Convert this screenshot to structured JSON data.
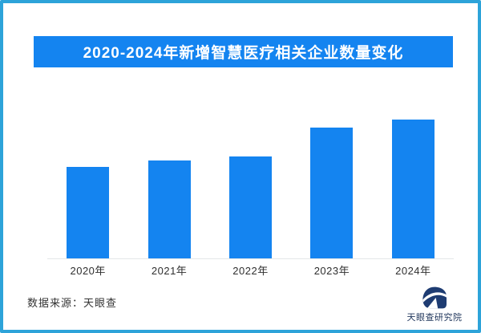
{
  "frame": {
    "background": "#ffffff",
    "border_color": "#2da3d9"
  },
  "title_banner": {
    "text": "2020-2024年新增智慧医疗相关企业数量变化",
    "bg_color": "#1484f0",
    "text_color": "#ffffff"
  },
  "chart_data": {
    "type": "bar",
    "title": "2020-2024年新增智慧医疗相关企业数量变化",
    "categories": [
      "2020年",
      "2021年",
      "2022年",
      "2023年",
      "2024年"
    ],
    "values": [
      114,
      122,
      127,
      163,
      173
    ],
    "values_unit": "relative bar heights in screen pixels; the chart displays no numeric axis or data labels",
    "values_pct_of_max": [
      66,
      71,
      73,
      94,
      100
    ],
    "xlabel": "",
    "ylabel": "",
    "grid": false,
    "legend": false,
    "bar_color": "#1484f0",
    "baseline_color": "#e4e7e9"
  },
  "footer": {
    "source_text": "数据来源：天眼查"
  },
  "logo": {
    "label": "天眼查研究院",
    "color": "#1e3c72"
  }
}
